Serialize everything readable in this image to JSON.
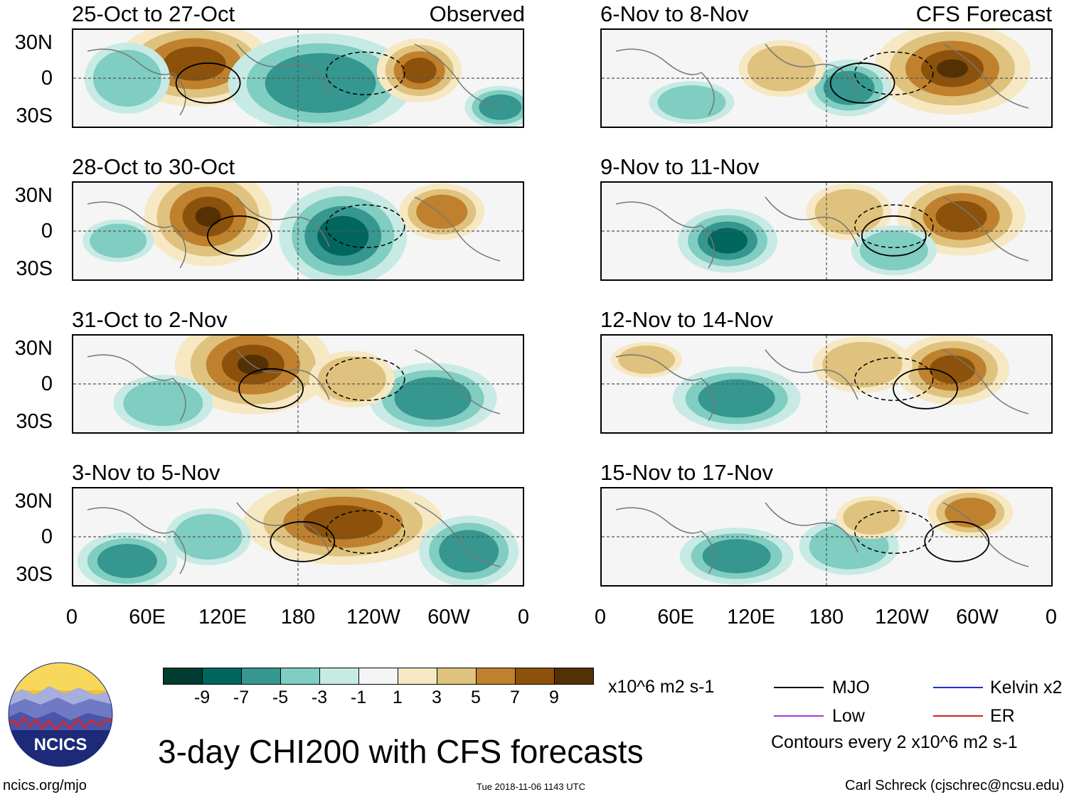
{
  "header": {
    "observed_label": "Observed",
    "forecast_label": "CFS Forecast"
  },
  "panels_left": [
    {
      "title": "25-Oct to 27-Oct"
    },
    {
      "title": "28-Oct to 30-Oct"
    },
    {
      "title": "31-Oct to 2-Nov"
    },
    {
      "title": "3-Nov to 5-Nov"
    }
  ],
  "panels_right": [
    {
      "title": "6-Nov to 8-Nov"
    },
    {
      "title": "9-Nov to 11-Nov"
    },
    {
      "title": "12-Nov to 14-Nov"
    },
    {
      "title": "15-Nov to 17-Nov"
    }
  ],
  "lat_labels": [
    "30N",
    "0",
    "30S"
  ],
  "lon_labels": [
    "0",
    "60E",
    "120E",
    "180",
    "120W",
    "60W",
    "0"
  ],
  "colorbar": {
    "labels": [
      "-9",
      "-7",
      "-5",
      "-3",
      "-1",
      "1",
      "3",
      "5",
      "7",
      "9"
    ],
    "colors": [
      "#003c30",
      "#01665e",
      "#35978f",
      "#80cdc1",
      "#c7eae5",
      "#f5f5f5",
      "#f6e8c3",
      "#dfc27d",
      "#bf812d",
      "#8c510a",
      "#543005"
    ],
    "units": "x10^6 m2 s-1"
  },
  "legend": {
    "mjo": "MJO",
    "kelvin": "Kelvin x2",
    "low": "Low",
    "er": "ER",
    "contour_note": "Contours every 2 x10^6 m2 s-1",
    "colors": {
      "mjo": "#000000",
      "kelvin": "#1f2fd0",
      "low": "#9b3fd6",
      "er": "#d01f1f"
    }
  },
  "title": "3-day CHI200 with CFS forecasts",
  "footer": {
    "url": "ncics.org/mjo",
    "timestamp": "Tue 2018-11-06 1143 UTC",
    "author": "Carl Schreck (cjschrec@ncsu.edu)",
    "logo_text": "NCICS"
  }
}
